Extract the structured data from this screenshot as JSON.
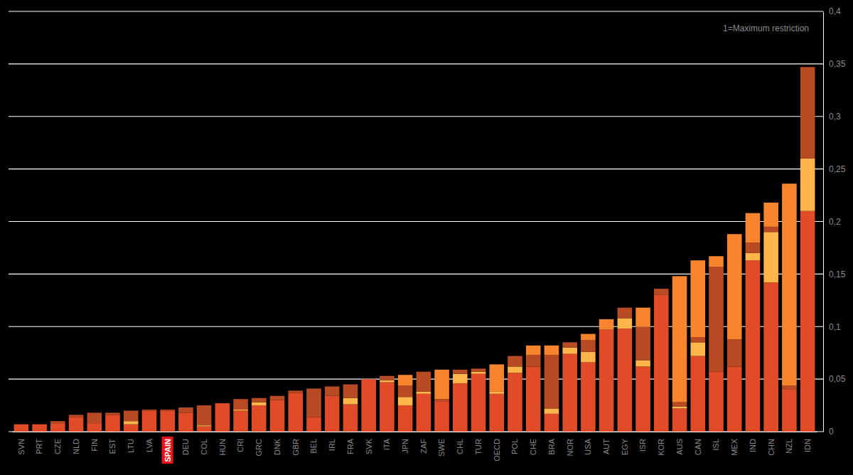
{
  "chart_data": {
    "type": "bar",
    "stacked": true,
    "grid": true,
    "annotation": "1=Maximum restriction",
    "categories": [
      "SVN",
      "PRT",
      "CZE",
      "NLD",
      "FIN",
      "EST",
      "LTU",
      "LVA",
      "SPAIN",
      "DEU",
      "COL",
      "HUN",
      "CRI",
      "GRC",
      "DNK",
      "GBR",
      "BEL",
      "IRL",
      "FRA",
      "SVK",
      "ITA",
      "JPN",
      "ZAF",
      "SWE",
      "CHL",
      "TUR",
      "OECD",
      "POL",
      "CHE",
      "BRA",
      "NOR",
      "USA",
      "AUT",
      "EGY",
      "ISR",
      "KOR",
      "AUS",
      "CAN",
      "ISL",
      "MEX",
      "IND",
      "CHN",
      "NZL",
      "IDN"
    ],
    "series": [
      {
        "color": "#e14b28",
        "values": [
          0.007,
          0.007,
          0.008,
          0.014,
          0.008,
          0.016,
          0.007,
          0.02,
          0.02,
          0.018,
          0.005,
          0.027,
          0.02,
          0.025,
          0.03,
          0.037,
          0.014,
          0.034,
          0.026,
          0.05,
          0.047,
          0.025,
          0.036,
          0.029,
          0.046,
          0.055,
          0.036,
          0.056,
          0.062,
          0.017,
          0.074,
          0.066,
          0.097,
          0.098,
          0.062,
          0.13,
          0.022,
          0.072,
          0.057,
          0.062,
          0.163,
          0.142,
          0.04,
          0.21
        ]
      },
      {
        "color": "#ffb54a",
        "values": [
          0,
          0,
          0,
          0,
          0,
          0,
          0.003,
          0,
          0,
          0,
          0.001,
          0,
          0.001,
          0.003,
          0,
          0,
          0,
          0,
          0.006,
          0,
          0.002,
          0.008,
          0.002,
          0,
          0.009,
          0.002,
          0.002,
          0.006,
          0,
          0.005,
          0.006,
          0.01,
          0,
          0.01,
          0.006,
          0,
          0.002,
          0.013,
          0,
          0,
          0.007,
          0.048,
          0,
          0.05
        ]
      },
      {
        "color": "#b84a24",
        "values": [
          0,
          0,
          0.002,
          0.002,
          0.01,
          0.002,
          0.01,
          0.001,
          0.001,
          0.005,
          0.019,
          0,
          0.01,
          0.004,
          0.004,
          0.002,
          0.027,
          0.009,
          0.013,
          0,
          0.004,
          0.011,
          0.019,
          0.002,
          0.004,
          0.003,
          0,
          0.01,
          0.011,
          0.051,
          0.005,
          0.011,
          0,
          0.01,
          0.032,
          0.006,
          0.004,
          0.005,
          0.1,
          0.026,
          0.01,
          0.005,
          0.004,
          0.087
        ]
      },
      {
        "color": "#f8852d",
        "values": [
          0,
          0,
          0,
          0,
          0,
          0,
          0,
          0,
          0,
          0,
          0,
          0,
          0,
          0,
          0,
          0,
          0,
          0,
          0,
          0,
          0,
          0.01,
          0,
          0.028,
          0,
          0,
          0.026,
          0,
          0.009,
          0.009,
          0,
          0.006,
          0.01,
          0,
          0.018,
          0,
          0.12,
          0.073,
          0.01,
          0.1,
          0.028,
          0.023,
          0.192,
          0
        ]
      }
    ],
    "ylim": [
      0,
      0.4
    ],
    "yticks": [
      0,
      {
        "value": 0.05,
        "label": "0,05"
      },
      {
        "value": 0.1,
        "label": "0,1"
      },
      {
        "value": 0.15,
        "label": "0,15"
      },
      {
        "value": 0.2,
        "label": "0,2"
      },
      {
        "value": 0.25,
        "label": "0,25"
      },
      {
        "value": 0.3,
        "label": "0,3"
      },
      {
        "value": 0.35,
        "label": "0,35"
      },
      {
        "value": 0.4,
        "label": "0,4"
      }
    ]
  }
}
